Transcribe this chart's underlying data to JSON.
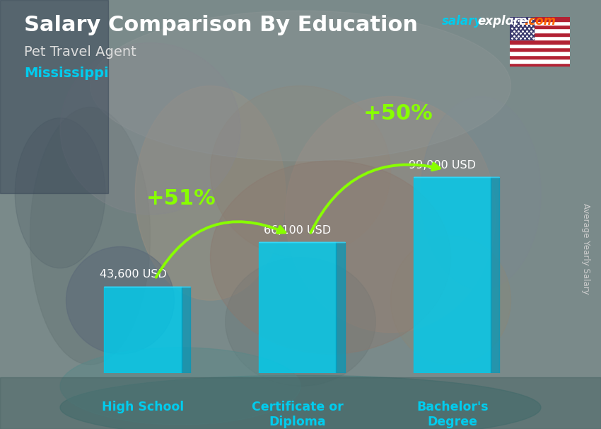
{
  "title": "Salary Comparison By Education",
  "subtitle_job": "Pet Travel Agent",
  "subtitle_loc": "Mississippi",
  "categories": [
    "High School",
    "Certificate or\nDiploma",
    "Bachelor's\nDegree"
  ],
  "values": [
    43600,
    66100,
    99000
  ],
  "value_labels": [
    "43,600 USD",
    "66,100 USD",
    "99,000 USD"
  ],
  "pct_labels": [
    "+51%",
    "+50%"
  ],
  "bar_color": "#00CCEE",
  "bar_alpha": 0.82,
  "bar_dark_color": "#0099BB",
  "pct_color": "#88FF00",
  "title_color": "#FFFFFF",
  "subtitle_job_color": "#DDDDDD",
  "subtitle_loc_color": "#00CCEE",
  "value_label_color": "#FFFFFF",
  "xlabel_color": "#00CCEE",
  "brand_salary_color": "#00CCEE",
  "brand_explorer_color": "#FFFFFF",
  "brand_com_color": "#FF6600",
  "side_label": "Average Yearly Salary",
  "side_label_color": "#CCCCCC",
  "bg_color": "#7A8A8A",
  "ylim": [
    0,
    130000
  ],
  "figsize": [
    8.5,
    6.06
  ],
  "dpi": 100
}
